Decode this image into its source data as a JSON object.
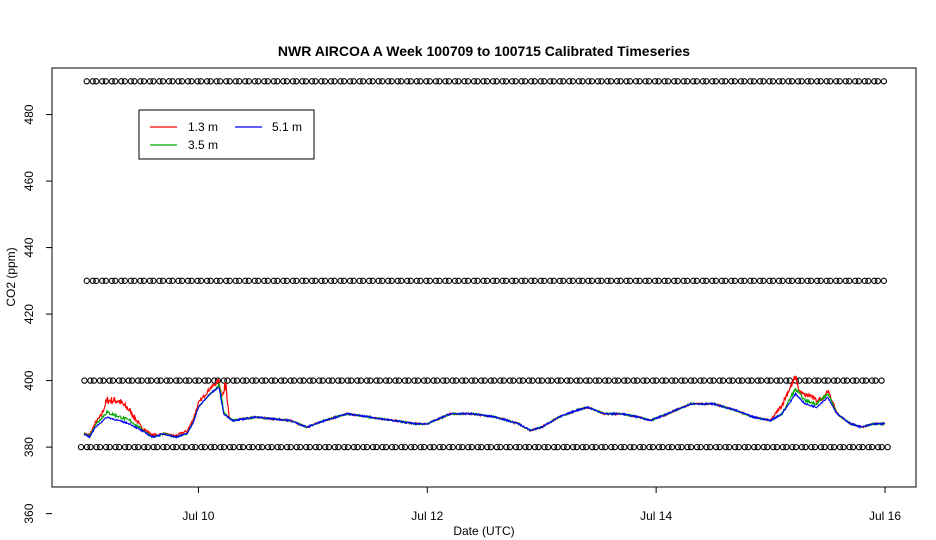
{
  "chart_data": {
    "type": "line",
    "title": "NWR AIRCOA A  Week 100709 to 100715  Calibrated Timeseries",
    "xlabel": "Date (UTC)",
    "ylabel": "CO2 (ppm)",
    "xlim": [
      9.0,
      16.0
    ],
    "ylim": [
      368,
      494
    ],
    "x_ticks": [
      {
        "value": 10,
        "label": "Jul 10"
      },
      {
        "value": 12,
        "label": "Jul 12"
      },
      {
        "value": 14,
        "label": "Jul 14"
      },
      {
        "value": 16,
        "label": "Jul 16"
      }
    ],
    "y_ticks": [
      360,
      380,
      400,
      420,
      440,
      460,
      480
    ],
    "legend": {
      "placement": "top-left",
      "entries": [
        {
          "label": "1.3 m",
          "color": "#ff0000"
        },
        {
          "label": "3.5 m",
          "color": "#00aa00"
        },
        {
          "label": "5.1 m",
          "color": "#0000ff"
        }
      ]
    },
    "series": [
      {
        "name": "1.3 m",
        "color": "#ff0000"
      },
      {
        "name": "3.5 m",
        "color": "#00aa00"
      },
      {
        "name": "5.1 m",
        "color": "#0000ff"
      }
    ],
    "base_profile": [
      [
        9.0,
        384
      ],
      [
        9.05,
        383
      ],
      [
        9.1,
        386
      ],
      [
        9.2,
        389
      ],
      [
        9.3,
        388
      ],
      [
        9.4,
        387
      ],
      [
        9.5,
        385
      ],
      [
        9.6,
        383
      ],
      [
        9.7,
        384
      ],
      [
        9.8,
        383
      ],
      [
        9.9,
        384
      ],
      [
        9.95,
        387
      ],
      [
        10.0,
        392
      ],
      [
        10.1,
        396
      ],
      [
        10.18,
        398
      ],
      [
        10.22,
        390
      ],
      [
        10.3,
        388
      ],
      [
        10.5,
        389
      ],
      [
        10.8,
        388
      ],
      [
        10.95,
        386
      ],
      [
        11.1,
        388
      ],
      [
        11.3,
        390
      ],
      [
        11.5,
        389
      ],
      [
        11.7,
        388
      ],
      [
        11.9,
        387
      ],
      [
        12.0,
        387
      ],
      [
        12.2,
        390
      ],
      [
        12.4,
        390
      ],
      [
        12.6,
        389
      ],
      [
        12.8,
        387
      ],
      [
        12.9,
        385
      ],
      [
        13.0,
        386
      ],
      [
        13.15,
        389
      ],
      [
        13.3,
        391
      ],
      [
        13.4,
        392
      ],
      [
        13.55,
        390
      ],
      [
        13.7,
        390
      ],
      [
        13.85,
        389
      ],
      [
        13.95,
        388
      ],
      [
        14.1,
        390
      ],
      [
        14.3,
        393
      ],
      [
        14.5,
        393
      ],
      [
        14.7,
        391
      ],
      [
        14.85,
        389
      ],
      [
        15.0,
        388
      ],
      [
        15.1,
        390
      ],
      [
        15.22,
        396
      ],
      [
        15.3,
        393
      ],
      [
        15.4,
        392
      ],
      [
        15.5,
        395
      ],
      [
        15.58,
        390
      ],
      [
        15.7,
        387
      ],
      [
        15.8,
        386
      ],
      [
        15.9,
        387
      ],
      [
        16.0,
        387
      ]
    ],
    "offsets": {
      "1.3 m": [
        [
          9.0,
          0
        ],
        [
          9.15,
          2
        ],
        [
          9.2,
          5
        ],
        [
          9.3,
          6
        ],
        [
          9.4,
          4
        ],
        [
          9.5,
          1
        ],
        [
          9.7,
          0
        ],
        [
          10.2,
          2
        ],
        [
          10.24,
          10
        ],
        [
          10.27,
          0
        ],
        [
          15.0,
          0
        ],
        [
          15.15,
          4
        ],
        [
          15.22,
          5
        ],
        [
          15.25,
          2
        ],
        [
          15.35,
          3
        ],
        [
          15.45,
          1
        ],
        [
          15.5,
          2
        ],
        [
          15.6,
          0
        ],
        [
          16.0,
          0
        ]
      ],
      "3.5 m": [
        [
          9.0,
          0
        ],
        [
          9.2,
          1.5
        ],
        [
          9.4,
          1
        ],
        [
          9.6,
          0
        ],
        [
          10.15,
          0
        ],
        [
          10.2,
          1.5
        ],
        [
          10.25,
          0
        ],
        [
          15.1,
          0
        ],
        [
          15.2,
          1.5
        ],
        [
          15.3,
          1
        ],
        [
          15.5,
          1
        ],
        [
          15.6,
          0
        ],
        [
          16.0,
          0
        ]
      ],
      "5.1 m": [
        [
          9.0,
          0
        ],
        [
          16.0,
          0
        ]
      ]
    },
    "calibration_rows": [
      {
        "value": 490,
        "start": 9.05,
        "spacing": 0.0833
      },
      {
        "value": 430,
        "start": 9.05,
        "spacing": 0.0833
      },
      {
        "value": 400,
        "start": 9.03,
        "spacing": 0.0833
      },
      {
        "value": 380,
        "start": 9.0,
        "spacing": 0.0833
      }
    ]
  }
}
